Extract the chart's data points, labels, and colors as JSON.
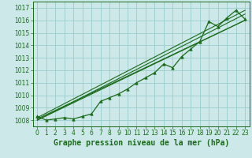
{
  "xlabel": "Graphe pression niveau de la mer (hPa)",
  "bg_color": "#cce8e8",
  "grid_color": "#99cccc",
  "line_color": "#1a6b1a",
  "hours": [
    0,
    1,
    2,
    3,
    4,
    5,
    6,
    7,
    8,
    9,
    10,
    11,
    12,
    13,
    14,
    15,
    16,
    17,
    18,
    19,
    20,
    21,
    22,
    23
  ],
  "pressure": [
    1008.3,
    1008.0,
    1008.1,
    1008.2,
    1008.1,
    1008.3,
    1008.5,
    1009.5,
    1009.8,
    1010.1,
    1010.5,
    1011.0,
    1011.4,
    1011.8,
    1012.5,
    1012.2,
    1013.1,
    1013.7,
    1014.3,
    1015.9,
    1015.5,
    1016.2,
    1016.8,
    1016.1
  ],
  "trend_lines": [
    {
      "x0": 0,
      "y0": 1008.0,
      "x1": 23,
      "y1": 1016.0
    },
    {
      "x0": 0,
      "y0": 1008.0,
      "x1": 23,
      "y1": 1016.5
    },
    {
      "x0": 0,
      "y0": 1008.1,
      "x1": 23,
      "y1": 1016.0
    },
    {
      "x0": 0,
      "y0": 1008.2,
      "x1": 23,
      "y1": 1016.8
    }
  ],
  "ylim_min": 1007.5,
  "ylim_max": 1017.5,
  "yticks": [
    1008,
    1009,
    1010,
    1011,
    1012,
    1013,
    1014,
    1015,
    1016,
    1017
  ],
  "xticks": [
    0,
    1,
    2,
    3,
    4,
    5,
    6,
    7,
    8,
    9,
    10,
    11,
    12,
    13,
    14,
    15,
    16,
    17,
    18,
    19,
    20,
    21,
    22,
    23
  ],
  "xlabel_fontsize": 7,
  "tick_fontsize": 5.5
}
